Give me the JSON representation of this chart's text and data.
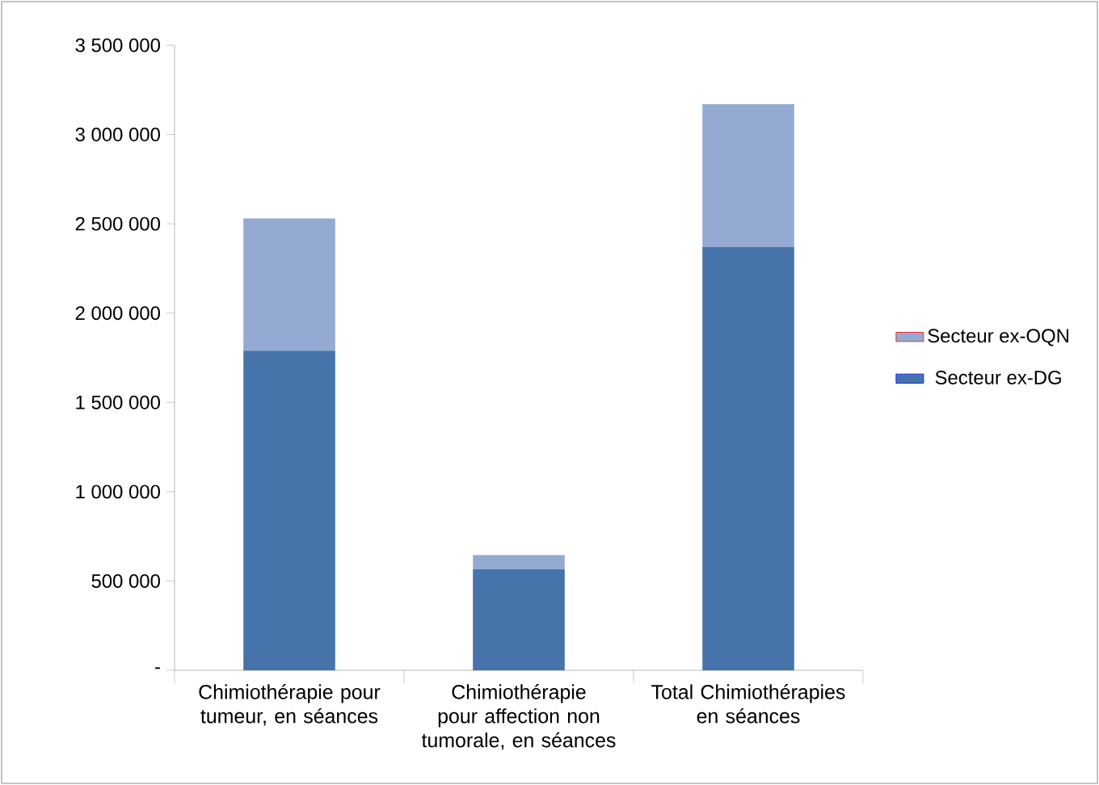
{
  "chart_data": {
    "type": "bar",
    "stacked": true,
    "categories": [
      "Chimiothérapie pour tumeur, en séances",
      "Chimiothérapie pour affection non tumorale, en séances",
      "Total Chimiothérapies en séances"
    ],
    "series": [
      {
        "name": "Secteur ex-DG",
        "color": "#4674aa",
        "values": [
          1790000,
          565000,
          2370000
        ]
      },
      {
        "name": "Secteur ex-OQN",
        "color": "#95aad3",
        "values": [
          740000,
          80000,
          800000
        ]
      }
    ],
    "ylim": [
      0,
      3500000
    ],
    "yticks": [
      {
        "value": 0,
        "label": "-"
      },
      {
        "value": 500000,
        "label": "500 000"
      },
      {
        "value": 1000000,
        "label": "1 000 000"
      },
      {
        "value": 1500000,
        "label": "1 500 000"
      },
      {
        "value": 2000000,
        "label": "2 000 000"
      },
      {
        "value": 2500000,
        "label": "2 500 000"
      },
      {
        "value": 3000000,
        "label": "3 000 000"
      },
      {
        "value": 3500000,
        "label": "3 500 000"
      }
    ],
    "legend": "right"
  }
}
